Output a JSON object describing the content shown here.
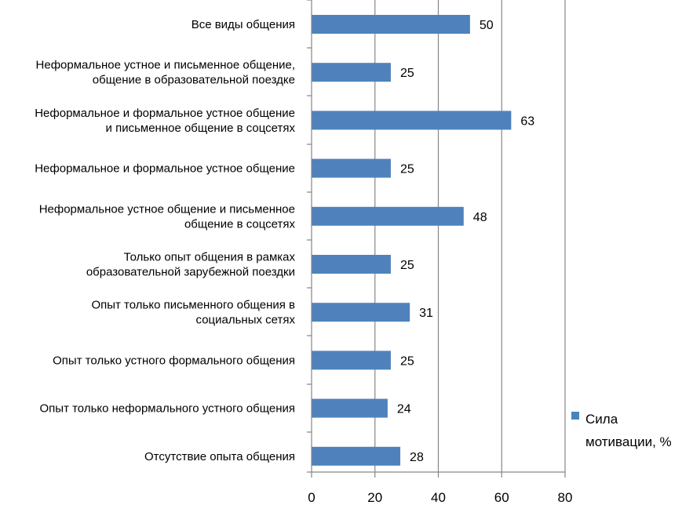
{
  "chart_data": {
    "type": "bar",
    "orientation": "horizontal",
    "categories": [
      "Все виды общения",
      "Неформальное устное и письменное общение,|общение в образовательной поездке",
      "Неформальное и формальное устное общение|и письменное общение в соцсетях",
      "Неформальное и формальное устное общение",
      "Неформальное устное общение и письменное|общение в соцсетях",
      "Только опыт общения в рамках|образовательной зарубежной поездки",
      "Опыт только письменного общения в|социальных сетях",
      "Опыт только устного формального общения",
      "Опыт только неформального устного общения",
      "Отсутствие опыта общения"
    ],
    "series": [
      {
        "name": "Сила мотивации, %",
        "values": [
          50,
          25,
          63,
          25,
          48,
          25,
          31,
          25,
          24,
          28
        ],
        "color": "#4f81bd"
      }
    ],
    "xlim": [
      0,
      80
    ],
    "x_ticks": [
      0,
      20,
      40,
      60,
      80
    ],
    "grid": "vertical",
    "legend_position": "right"
  },
  "colors": {
    "bar": "#4f81bd",
    "grid": "#868686",
    "axis": "#868686"
  },
  "legend": {
    "label_line1": "Сила",
    "label_line2": "мотивации, %"
  }
}
